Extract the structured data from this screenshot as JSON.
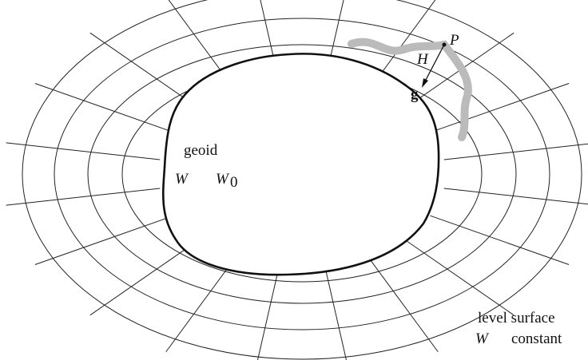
{
  "labels": {
    "geoid": "geoid",
    "w_geoid": "W",
    "w0_base": "W",
    "w0_sub": "0",
    "h": "H",
    "p": "P",
    "g": "g",
    "level_surface": "level surface",
    "w_level": "W",
    "constant": "constant"
  }
}
